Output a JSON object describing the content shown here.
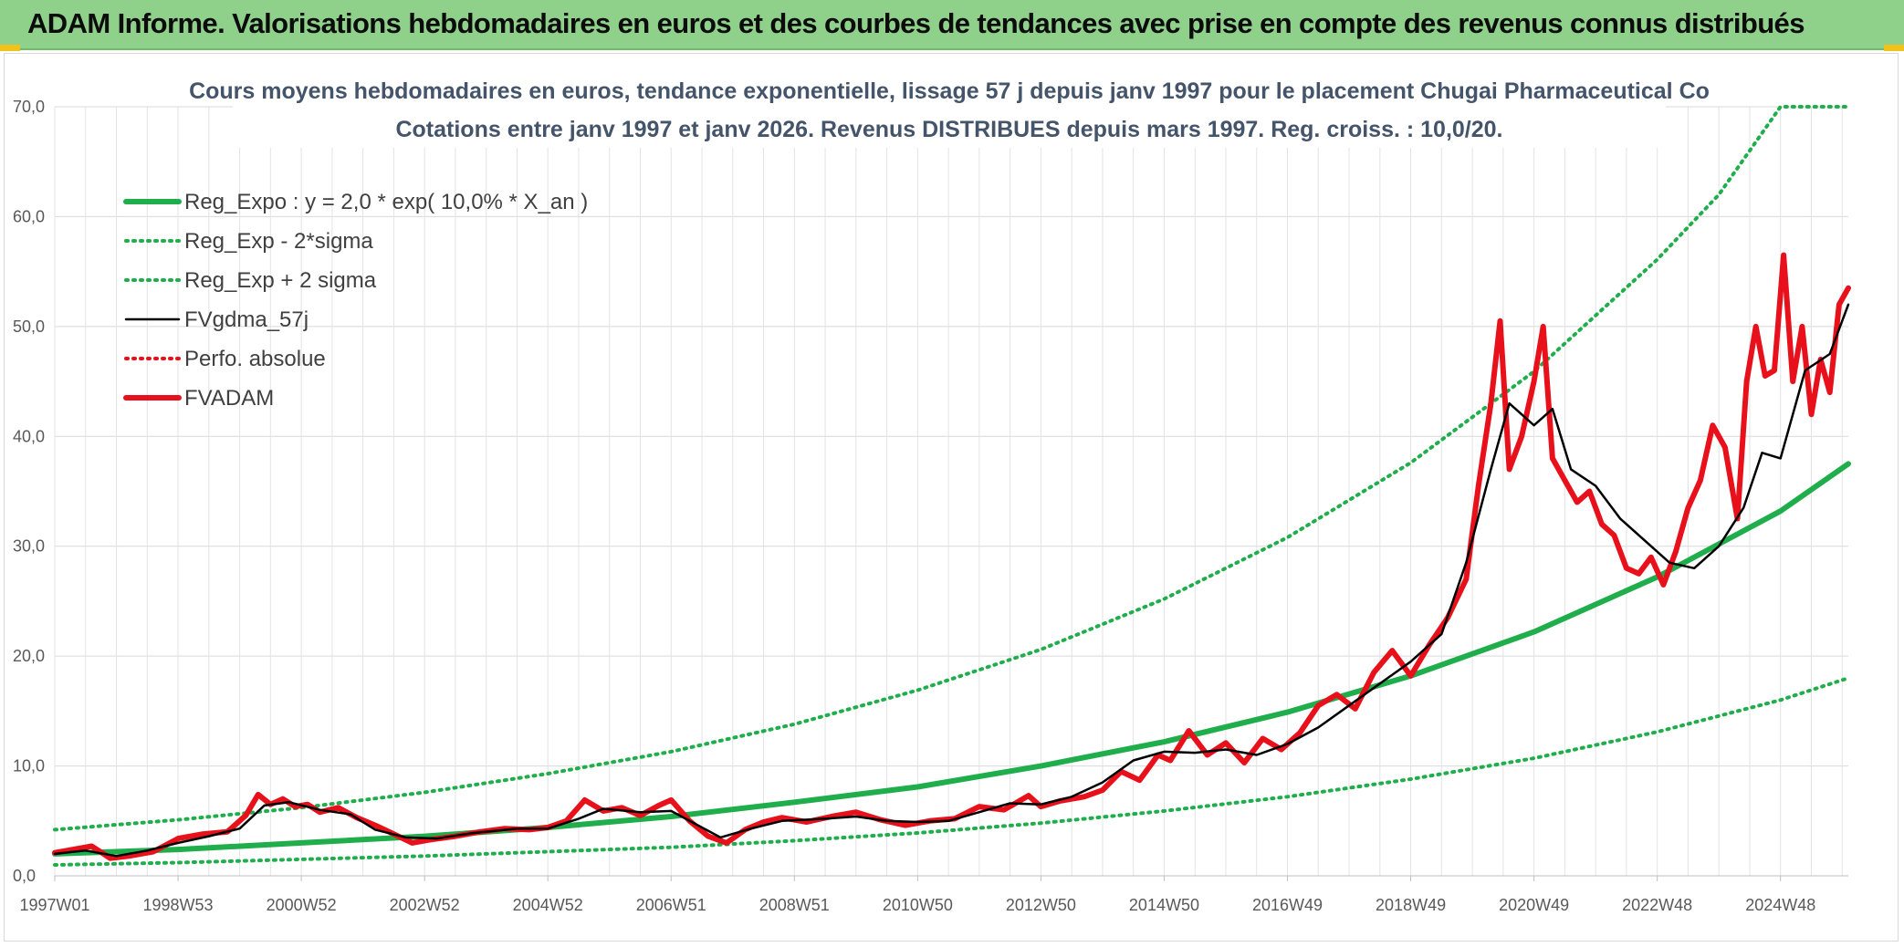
{
  "header": {
    "title": "ADAM Informe. Valorisations hebdomadaires en euros et des courbes de tendances avec prise en compte des revenus connus distribués",
    "background": "#8fd08b",
    "accent": "#f2c21b"
  },
  "chart_data": {
    "type": "line",
    "title": "Cours moyens hebdomadaires en euros, tendance exponentielle, lissage 57 j depuis janv 1997 pour le placement Chugai Pharmaceutical Co",
    "subtitle": "Cotations entre janv 1997 et janv 2026. Revenus DISTRIBUES depuis mars 1997. Reg. croiss. : 10,0/20.",
    "xlabel": "",
    "ylabel": "",
    "ylim": [
      0,
      70
    ],
    "xlim": [
      1997.0,
      2026.1
    ],
    "grid": true,
    "legend_position": "top-left",
    "y_ticks": [
      "0,0",
      "10,0",
      "20,0",
      "30,0",
      "40,0",
      "50,0",
      "60,0",
      "70,0"
    ],
    "y_tick_values": [
      0,
      10,
      20,
      30,
      40,
      50,
      60,
      70
    ],
    "x_ticks": [
      "1997W01",
      "1998W53",
      "2000W52",
      "2002W52",
      "2004W52",
      "2006W51",
      "2008W51",
      "2010W50",
      "2012W50",
      "2014W50",
      "2016W49",
      "2018W49",
      "2020W49",
      "2022W48",
      "2024W48"
    ],
    "x_tick_values": [
      1997.0,
      1999.0,
      2001.0,
      2003.0,
      2005.0,
      2007.0,
      2009.0,
      2011.0,
      2013.0,
      2015.0,
      2017.0,
      2019.0,
      2021.0,
      2023.0,
      2025.0
    ],
    "series": [
      {
        "name": "Reg_Expo : y = 2,0 * exp( 10,0% *  X_an )",
        "style": "solid-thick",
        "color": "#1fae4b",
        "x": [
          1997.0,
          1999.0,
          2001.0,
          2003.0,
          2005.0,
          2007.0,
          2009.0,
          2011.0,
          2013.0,
          2015.0,
          2017.0,
          2019.0,
          2021.0,
          2023.0,
          2025.0,
          2026.1
        ],
        "y": [
          2.0,
          2.4,
          3.0,
          3.6,
          4.4,
          5.4,
          6.7,
          8.1,
          10.0,
          12.2,
          14.9,
          18.2,
          22.2,
          27.2,
          33.2,
          37.5
        ]
      },
      {
        "name": "Reg_Exp - 2*sigma",
        "style": "dotted",
        "color": "#1fae4b",
        "x": [
          1997.0,
          1999.0,
          2001.0,
          2003.0,
          2005.0,
          2007.0,
          2009.0,
          2011.0,
          2013.0,
          2015.0,
          2017.0,
          2019.0,
          2021.0,
          2023.0,
          2025.0,
          2026.1
        ],
        "y": [
          1.0,
          1.2,
          1.5,
          1.8,
          2.2,
          2.6,
          3.2,
          3.9,
          4.8,
          5.9,
          7.2,
          8.8,
          10.7,
          13.1,
          16.0,
          18.0
        ]
      },
      {
        "name": "Reg_Exp + 2 sigma",
        "style": "dotted",
        "color": "#1fae4b",
        "x": [
          1997.0,
          1999.0,
          2001.0,
          2003.0,
          2005.0,
          2007.0,
          2009.0,
          2011.0,
          2013.0,
          2015.0,
          2017.0,
          2019.0,
          2021.0,
          2023.0,
          2024.0,
          2025.0,
          2026.1
        ],
        "y": [
          4.2,
          5.1,
          6.2,
          7.6,
          9.3,
          11.3,
          13.8,
          16.9,
          20.6,
          25.2,
          30.8,
          37.6,
          45.9,
          56.1,
          62.0,
          70.0,
          70.0
        ]
      },
      {
        "name": "FVgdma_57j",
        "style": "solid",
        "color": "#000000",
        "x": [
          1997.0,
          1997.5,
          1998.0,
          1998.5,
          1999.0,
          1999.5,
          2000.0,
          2000.4,
          2000.8,
          2001.3,
          2001.8,
          2002.2,
          2002.7,
          2003.2,
          2003.8,
          2004.5,
          2005.0,
          2005.5,
          2005.9,
          2006.5,
          2007.0,
          2007.4,
          2007.8,
          2008.3,
          2008.8,
          2009.5,
          2010.0,
          2010.5,
          2011.0,
          2011.5,
          2012.0,
          2012.5,
          2013.0,
          2013.5,
          2014.0,
          2014.5,
          2015.0,
          2015.5,
          2016.0,
          2016.5,
          2017.0,
          2017.5,
          2018.0,
          2018.5,
          2019.0,
          2019.5,
          2019.9,
          2020.3,
          2020.6,
          2021.0,
          2021.3,
          2021.6,
          2022.0,
          2022.4,
          2022.8,
          2023.2,
          2023.6,
          2024.0,
          2024.4,
          2024.7,
          2025.0,
          2025.4,
          2025.8,
          2026.1
        ],
        "y": [
          2.0,
          2.3,
          1.8,
          2.3,
          3.0,
          3.6,
          4.3,
          6.4,
          6.7,
          6.0,
          5.6,
          4.2,
          3.5,
          3.4,
          3.9,
          4.3,
          4.3,
          5.2,
          6.1,
          5.8,
          5.9,
          4.7,
          3.5,
          4.3,
          5.0,
          5.2,
          5.4,
          5.0,
          4.9,
          5.0,
          5.8,
          6.6,
          6.5,
          7.2,
          8.5,
          10.5,
          11.3,
          11.2,
          11.5,
          11.0,
          12.0,
          13.5,
          15.5,
          17.5,
          19.5,
          22.0,
          28.5,
          37.0,
          43.0,
          41.0,
          42.5,
          37.0,
          35.5,
          32.5,
          30.5,
          28.5,
          28.0,
          30.0,
          33.5,
          38.5,
          38.0,
          46.0,
          47.5,
          52.0
        ]
      },
      {
        "name": "Perfo. absolue",
        "style": "dotted",
        "color": "#e8101a",
        "x": [],
        "y": []
      },
      {
        "name": "FVADAM",
        "style": "solid-thick",
        "color": "#e8101a",
        "x": [
          1997.0,
          1997.3,
          1997.6,
          1997.9,
          1998.2,
          1998.6,
          1999.0,
          1999.4,
          1999.8,
          2000.1,
          2000.3,
          2000.5,
          2000.7,
          2000.9,
          2001.1,
          2001.3,
          2001.6,
          2001.9,
          2002.2,
          2002.5,
          2002.8,
          2003.1,
          2003.5,
          2003.9,
          2004.3,
          2004.7,
          2005.0,
          2005.3,
          2005.6,
          2005.9,
          2006.2,
          2006.5,
          2006.8,
          2007.0,
          2007.3,
          2007.6,
          2007.9,
          2008.2,
          2008.5,
          2008.8,
          2009.2,
          2009.6,
          2010.0,
          2010.4,
          2010.8,
          2011.2,
          2011.6,
          2012.0,
          2012.4,
          2012.8,
          2013.0,
          2013.3,
          2013.7,
          2014.0,
          2014.3,
          2014.6,
          2014.9,
          2015.1,
          2015.4,
          2015.7,
          2016.0,
          2016.3,
          2016.6,
          2016.9,
          2017.2,
          2017.5,
          2017.8,
          2018.1,
          2018.4,
          2018.7,
          2019.0,
          2019.3,
          2019.6,
          2019.9,
          2020.1,
          2020.3,
          2020.45,
          2020.6,
          2020.8,
          2021.0,
          2021.15,
          2021.3,
          2021.5,
          2021.7,
          2021.9,
          2022.1,
          2022.3,
          2022.5,
          2022.7,
          2022.9,
          2023.1,
          2023.3,
          2023.5,
          2023.7,
          2023.9,
          2024.1,
          2024.3,
          2024.45,
          2024.6,
          2024.75,
          2024.9,
          2025.05,
          2025.2,
          2025.35,
          2025.5,
          2025.65,
          2025.8,
          2025.95,
          2026.1
        ],
        "y": [
          2.1,
          2.4,
          2.7,
          1.6,
          1.8,
          2.2,
          3.4,
          3.8,
          4.0,
          5.5,
          7.4,
          6.5,
          7.0,
          6.3,
          6.5,
          5.8,
          6.2,
          5.3,
          4.6,
          3.8,
          3.0,
          3.3,
          3.6,
          4.0,
          4.3,
          4.2,
          4.4,
          5.0,
          6.9,
          5.9,
          6.2,
          5.5,
          6.4,
          6.9,
          5.0,
          3.6,
          3.0,
          4.2,
          4.9,
          5.3,
          4.9,
          5.4,
          5.8,
          5.1,
          4.6,
          5.0,
          5.2,
          6.3,
          6.0,
          7.3,
          6.3,
          6.8,
          7.2,
          7.8,
          9.5,
          8.7,
          11.0,
          10.5,
          13.2,
          11.0,
          12.1,
          10.3,
          12.5,
          11.5,
          13.0,
          15.5,
          16.5,
          15.2,
          18.5,
          20.5,
          18.2,
          21.0,
          23.5,
          27.0,
          35.5,
          43.0,
          50.5,
          37.0,
          40.0,
          45.0,
          50.0,
          38.0,
          36.0,
          34.0,
          35.0,
          32.0,
          31.0,
          28.0,
          27.5,
          29.0,
          26.5,
          29.5,
          33.5,
          36.0,
          41.0,
          39.0,
          32.5,
          45.0,
          50.0,
          45.5,
          46.0,
          56.5,
          45.0,
          50.0,
          42.0,
          47.0,
          44.0,
          52.0,
          53.5
        ]
      }
    ]
  }
}
